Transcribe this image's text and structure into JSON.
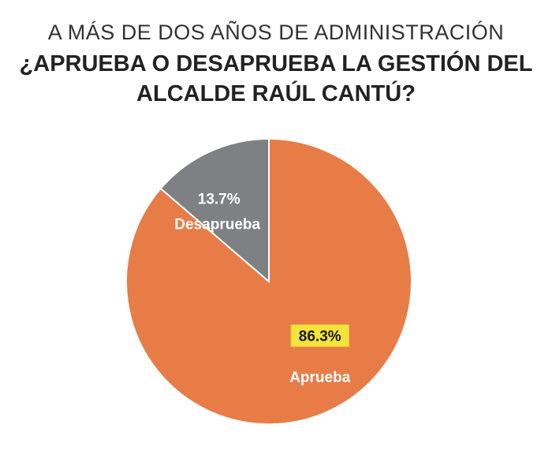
{
  "header": {
    "subtitle": "A MÁS DE DOS AÑOS DE ADMINISTRACIÓN",
    "title_line1": "¿APRUEBA O DESAPRUEBA LA GESTIÓN DEL",
    "title_line2": "ALCALDE RAÚL CANTÚ?"
  },
  "chart_data": {
    "type": "pie",
    "categories": [
      "Aprueba",
      "Desaprueba"
    ],
    "values": [
      86.3,
      13.7
    ],
    "value_labels": [
      "86.3%",
      "13.7%"
    ],
    "colors": [
      "#e87c47",
      "#7f8083"
    ],
    "highlight_color": "#f2e43a",
    "title": "¿APRUEBA O DESAPRUEBA LA GESTIÓN DEL ALCALDE RAÚL CANTÚ?",
    "subtitle": "A MÁS DE DOS AÑOS DE ADMINISTRACIÓN",
    "legend": "none"
  }
}
